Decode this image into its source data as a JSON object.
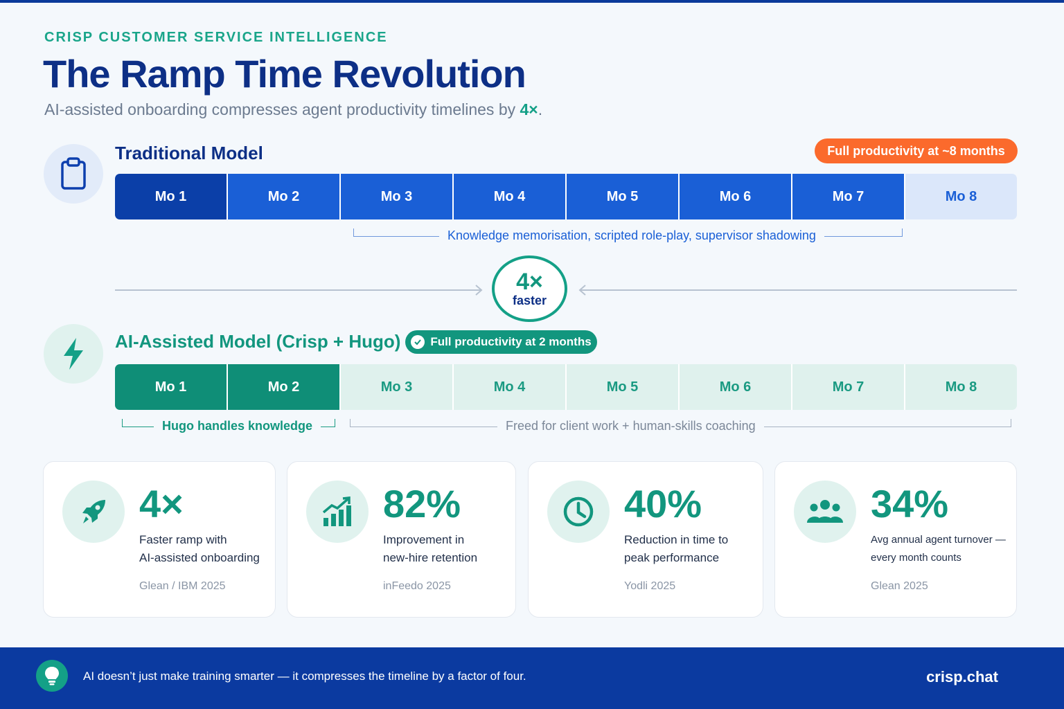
{
  "header": {
    "eyebrow": "CRISP CUSTOMER SERVICE INTELLIGENCE",
    "title": "The Ramp Time Revolution",
    "subtitle_prefix": "AI-assisted onboarding compresses agent productivity timelines by ",
    "subtitle_highlight": "4×",
    "subtitle_suffix": "."
  },
  "traditional": {
    "icon": "clipboard-icon",
    "title": "Traditional Model",
    "badge": "Full productivity at ~8 months",
    "months": [
      "Mo 1",
      "Mo 2",
      "Mo 3",
      "Mo 4",
      "Mo 5",
      "Mo 6",
      "Mo 7",
      "Mo 8"
    ],
    "bracket_label": "Knowledge memorisation, scripted role-play, supervisor shadowing"
  },
  "comparison": {
    "multiplier": "4×",
    "label": "faster"
  },
  "ai_assisted": {
    "icon": "lightning-icon",
    "title": "AI-Assisted Model (Crisp + Hugo)",
    "badge": "Full productivity at 2 months",
    "months": [
      "Mo 1",
      "Mo 2",
      "Mo 3",
      "Mo 4",
      "Mo 5",
      "Mo 6",
      "Mo 7",
      "Mo 8"
    ],
    "bracket_label_1": "Hugo handles knowledge",
    "bracket_label_2": "Freed for client work + human-skills coaching"
  },
  "stats": [
    {
      "icon": "rocket-icon",
      "value": "4×",
      "line1": "Faster ramp with",
      "line2": "AI-assisted onboarding",
      "source": "Glean / IBM 2025"
    },
    {
      "icon": "growth-chart-icon",
      "value": "82%",
      "line1": "Improvement in",
      "line2": "new-hire retention",
      "source": "inFeedo 2025"
    },
    {
      "icon": "clock-icon",
      "value": "40%",
      "line1": "Reduction in time to",
      "line2": "peak performance",
      "source": "Yodli 2025"
    },
    {
      "icon": "people-icon",
      "value": "34%",
      "line1": "Avg annual agent turnover —",
      "line2": "every month counts",
      "source": "Glean 2025"
    }
  ],
  "footer": {
    "icon": "lightbulb-icon",
    "message": "AI doesn’t just make training smarter — it compresses the timeline by a factor of four.",
    "brand": "crisp.chat"
  },
  "colors": {
    "navy": "#0d2f86",
    "blue": "#1a5fd6",
    "teal": "#12967e",
    "orange": "#fb6a2c",
    "footer": "#0b3aa0"
  }
}
